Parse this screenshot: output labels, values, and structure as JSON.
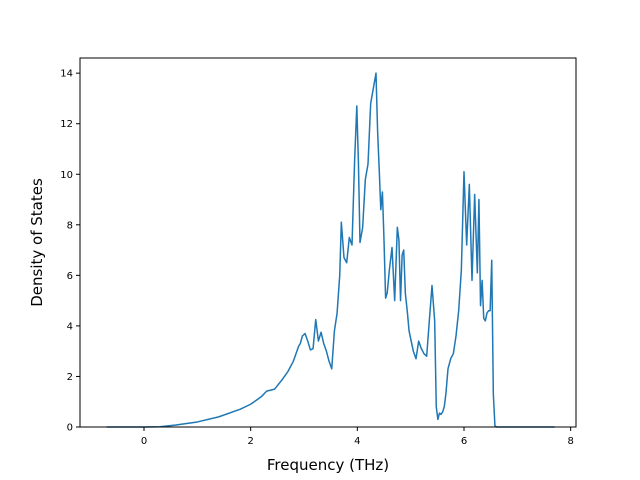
{
  "chart_data": {
    "type": "line",
    "title": "",
    "xlabel": "Frequency (THz)",
    "ylabel": "Density of States",
    "xlim": [
      -1.2,
      8.1
    ],
    "ylim": [
      0,
      14.6
    ],
    "xticks": [
      0,
      2,
      4,
      6,
      8
    ],
    "yticks": [
      0,
      2,
      4,
      6,
      8,
      10,
      12,
      14
    ],
    "grid": false,
    "legend": "none",
    "color": "#1f77b4",
    "series": [
      {
        "x": [
          -0.7,
          -0.2,
          0.0,
          0.3,
          0.6,
          1.0,
          1.4,
          1.8,
          2.0,
          2.1,
          2.2,
          2.3,
          2.45,
          2.6,
          2.7,
          2.8,
          2.9,
          2.93,
          2.97,
          3.02,
          3.07,
          3.12,
          3.17,
          3.22,
          3.27,
          3.32,
          3.37,
          3.42,
          3.47,
          3.52,
          3.57,
          3.62,
          3.67,
          3.7,
          3.75,
          3.8,
          3.85,
          3.9,
          3.95,
          3.99,
          4.02,
          4.05,
          4.1,
          4.15,
          4.2,
          4.25,
          4.3,
          4.35,
          4.38,
          4.41,
          4.44,
          4.47,
          4.5,
          4.53,
          4.56,
          4.6,
          4.65,
          4.7,
          4.75,
          4.78,
          4.81,
          4.84,
          4.87,
          4.9,
          4.94,
          4.97,
          5.0,
          5.05,
          5.1,
          5.15,
          5.2,
          5.25,
          5.3,
          5.35,
          5.4,
          5.45,
          5.48,
          5.51,
          5.54,
          5.57,
          5.6,
          5.63,
          5.66,
          5.7,
          5.75,
          5.8,
          5.85,
          5.9,
          5.95,
          6.0,
          6.05,
          6.1,
          6.15,
          6.2,
          6.25,
          6.28,
          6.31,
          6.34,
          6.37,
          6.4,
          6.43,
          6.46,
          6.49,
          6.52,
          6.55,
          6.58,
          6.61,
          6.64,
          6.67,
          6.7,
          6.75,
          6.8,
          6.85,
          6.9,
          6.93,
          6.96,
          6.99,
          7.02,
          7.1,
          7.3,
          7.7
        ],
        "y": [
          0,
          0,
          0,
          0.01,
          0.08,
          0.2,
          0.4,
          0.7,
          0.9,
          1.05,
          1.2,
          1.42,
          1.5,
          1.9,
          2.2,
          2.6,
          3.2,
          3.3,
          3.6,
          3.7,
          3.4,
          3.05,
          3.1,
          4.25,
          3.4,
          3.75,
          3.3,
          3.0,
          2.6,
          2.3,
          3.8,
          4.5,
          6.0,
          8.1,
          6.7,
          6.5,
          7.5,
          7.2,
          10.6,
          12.7,
          10.5,
          7.3,
          7.9,
          9.8,
          10.4,
          12.8,
          13.4,
          14.0,
          11.7,
          10.2,
          8.6,
          9.3,
          7.4,
          5.1,
          5.3,
          6.2,
          7.1,
          5.0,
          7.9,
          7.4,
          5.0,
          6.8,
          7.0,
          5.3,
          4.5,
          3.8,
          3.5,
          3.0,
          2.7,
          3.4,
          3.1,
          2.9,
          2.8,
          4.2,
          5.6,
          4.2,
          0.8,
          0.3,
          0.55,
          0.5,
          0.6,
          0.8,
          1.3,
          2.3,
          2.7,
          2.9,
          3.6,
          4.6,
          6.2,
          10.1,
          7.2,
          9.6,
          5.8,
          9.2,
          6.1,
          9.0,
          4.8,
          5.8,
          4.3,
          4.2,
          4.5,
          4.6,
          4.6,
          6.6,
          1.3,
          0.05,
          0.0,
          0.0,
          0.0,
          0.0,
          0.0,
          0.0,
          0.0,
          0.0,
          0.0,
          0.0,
          0.0,
          0.0,
          0.0,
          0.0,
          0.0
        ]
      }
    ]
  }
}
